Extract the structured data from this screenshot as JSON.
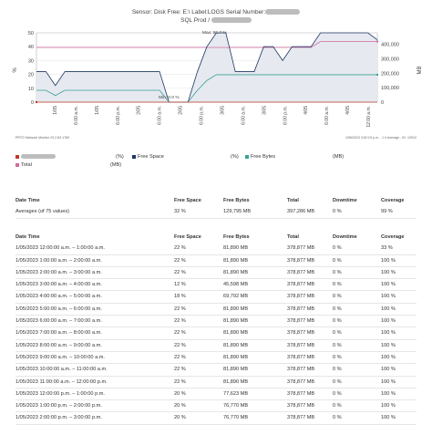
{
  "title": {
    "line1_prefix": "Sensor: Disk Free: E:\\ Label:LOGS  Serial Number:",
    "line2_prefix": "SQL Prod / "
  },
  "chart": {
    "left_axis_label": "%",
    "right_axis_label": "MB",
    "left_ticks": [
      "50",
      "40",
      "30",
      "20",
      "10",
      "0"
    ],
    "right_ticks": [
      "400,000",
      "300,000",
      "200,000",
      "100,000",
      "0"
    ],
    "max_annotation": "Max: 50.7 %",
    "min_annotation": "Min: 0.0 %",
    "x_tick_labels": [
      "1/05",
      "6:00 a.m.",
      "1/05",
      "6:00 p.m.",
      "2/05",
      "6:00 a.m.",
      "2/05",
      "6:00 p.m.",
      "3/05",
      "6:00 a.m.",
      "3/05",
      "6:00 p.m.",
      "4/05",
      "6:00 a.m.",
      "4/05",
      "12:00 a.m."
    ],
    "colors": {
      "free_space": "#1f3864",
      "free_bytes": "#3aa29a",
      "downtime": "#c0392b",
      "total": "#d36aa0",
      "area_fill": "#e6e9ef"
    }
  },
  "chart_data": {
    "type": "line",
    "title": "Sensor: Disk Free: E:\\ Label:LOGS  Serial Number:",
    "ylabel": "%",
    "y2label": "MB",
    "ylim": [
      0,
      50
    ],
    "y2lim": [
      0,
      480000
    ],
    "series": [
      {
        "name": "Free Space",
        "axis": "left",
        "unit": "%",
        "values": [
          22,
          22,
          12,
          22,
          22,
          22,
          22,
          22,
          22,
          22,
          22,
          22,
          22,
          22,
          0,
          0,
          0,
          22,
          40,
          50,
          50,
          22,
          22,
          22,
          40,
          40,
          30,
          40,
          40,
          40,
          50,
          50,
          50,
          50,
          50,
          50,
          45
        ]
      },
      {
        "name": "Free Bytes",
        "axis": "right",
        "unit": "MB",
        "values": [
          81890,
          81890,
          45598,
          81890,
          81890,
          81890,
          81890,
          81890,
          81890,
          81890,
          81890,
          81890,
          81890,
          81890,
          0,
          0,
          0,
          81890,
          150000,
          190000,
          190000,
          190000,
          190000,
          190000,
          190000,
          190000,
          190000,
          190000,
          190000,
          190000,
          190000,
          190000,
          190000,
          190000,
          190000,
          190000,
          190000
        ]
      },
      {
        "name": "Total",
        "axis": "right",
        "unit": "MB",
        "values": [
          378877,
          378877,
          378877,
          378877,
          378877,
          378877,
          378877,
          378877,
          378877,
          378877,
          378877,
          378877,
          378877,
          378877,
          378877,
          378877,
          378877,
          378877,
          378877,
          378877,
          378877,
          378877,
          378877,
          378877,
          378877,
          378877,
          378877,
          378877,
          378877,
          378877,
          420000,
          420000,
          420000,
          420000,
          420000,
          420000,
          420000
        ]
      },
      {
        "name": "Downtime",
        "axis": "left",
        "unit": "%",
        "values": [
          0,
          0,
          0,
          0,
          0,
          0,
          0,
          0,
          0,
          0,
          0,
          0,
          0,
          0,
          0,
          0,
          0,
          0,
          0,
          0,
          0,
          0,
          0,
          0,
          0,
          0,
          0,
          0,
          0,
          0,
          0,
          0,
          0,
          0,
          0,
          0,
          0
        ]
      }
    ],
    "annotations": [
      "Max: 50.7 %",
      "Min: 0.0 %"
    ]
  },
  "footer_left": "PRTG Network Monitor 23.2.83.1760",
  "footer_right": "1/06/2023 3:52:15 p.m. - 1 h Average - ID: 13912",
  "legend": {
    "row1": {
      "unit1": "(%)",
      "item2": "Free Space",
      "unit2": "(%)",
      "item3": "Free Bytes",
      "unit3": "(MB)"
    },
    "row2": {
      "item1": "Total",
      "unit1": "(MB)"
    }
  },
  "columns": [
    "Date Time",
    "Free Space",
    "Free Bytes",
    "Total",
    "Downtime",
    "Coverage"
  ],
  "averages": [
    "Averages (of 75 values)",
    "32 %",
    "129,795 MB",
    "397,286 MB",
    "0 %",
    "99 %"
  ],
  "rows": [
    [
      "1/05/2023 12:00:00 a.m. – 1:00:00 a.m.",
      "22 %",
      "81,890 MB",
      "378,877 MB",
      "0 %",
      "33 %"
    ],
    [
      "1/05/2023 1:00:00 a.m. – 2:00:00 a.m.",
      "22 %",
      "81,890 MB",
      "378,877 MB",
      "0 %",
      "100 %"
    ],
    [
      "1/05/2023 2:00:00 a.m. – 3:00:00 a.m.",
      "22 %",
      "81,890 MB",
      "378,877 MB",
      "0 %",
      "100 %"
    ],
    [
      "1/05/2023 3:00:00 a.m. – 4:00:00 a.m.",
      "12 %",
      "45,598 MB",
      "378,877 MB",
      "0 %",
      "100 %"
    ],
    [
      "1/05/2023 4:00:00 a.m. – 5:00:00 a.m.",
      "18 %",
      "69,792 MB",
      "378,877 MB",
      "0 %",
      "100 %"
    ],
    [
      "1/05/2023 5:00:00 a.m. – 6:00:00 a.m.",
      "22 %",
      "81,890 MB",
      "378,877 MB",
      "0 %",
      "100 %"
    ],
    [
      "1/05/2023 6:00:00 a.m. – 7:00:00 a.m.",
      "22 %",
      "81,890 MB",
      "378,877 MB",
      "0 %",
      "100 %"
    ],
    [
      "1/05/2023 7:00:00 a.m. – 8:00:00 a.m.",
      "22 %",
      "81,890 MB",
      "378,877 MB",
      "0 %",
      "100 %"
    ],
    [
      "1/05/2023 8:00:00 a.m. – 9:00:00 a.m.",
      "22 %",
      "81,890 MB",
      "378,877 MB",
      "0 %",
      "100 %"
    ],
    [
      "1/05/2023 9:00:00 a.m. – 10:00:00 a.m.",
      "22 %",
      "81,890 MB",
      "378,877 MB",
      "0 %",
      "100 %"
    ],
    [
      "1/05/2023 10:00:00 a.m. – 11:00:00 a.m.",
      "22 %",
      "81,890 MB",
      "378,877 MB",
      "0 %",
      "100 %"
    ],
    [
      "1/05/2023 11:00:00 a.m. – 12:00:00 p.m.",
      "22 %",
      "81,890 MB",
      "378,877 MB",
      "0 %",
      "100 %"
    ],
    [
      "1/05/2023 12:00:00 p.m. – 1:00:00 p.m.",
      "20 %",
      "77,623 MB",
      "378,877 MB",
      "0 %",
      "100 %"
    ],
    [
      "1/05/2023 1:00:00 p.m. – 2:00:00 p.m.",
      "20 %",
      "76,770 MB",
      "378,877 MB",
      "0 %",
      "100 %"
    ],
    [
      "1/05/2023 2:00:00 p.m. – 3:00:00 p.m.",
      "20 %",
      "76,770 MB",
      "378,877 MB",
      "0 %",
      "100 %"
    ]
  ]
}
